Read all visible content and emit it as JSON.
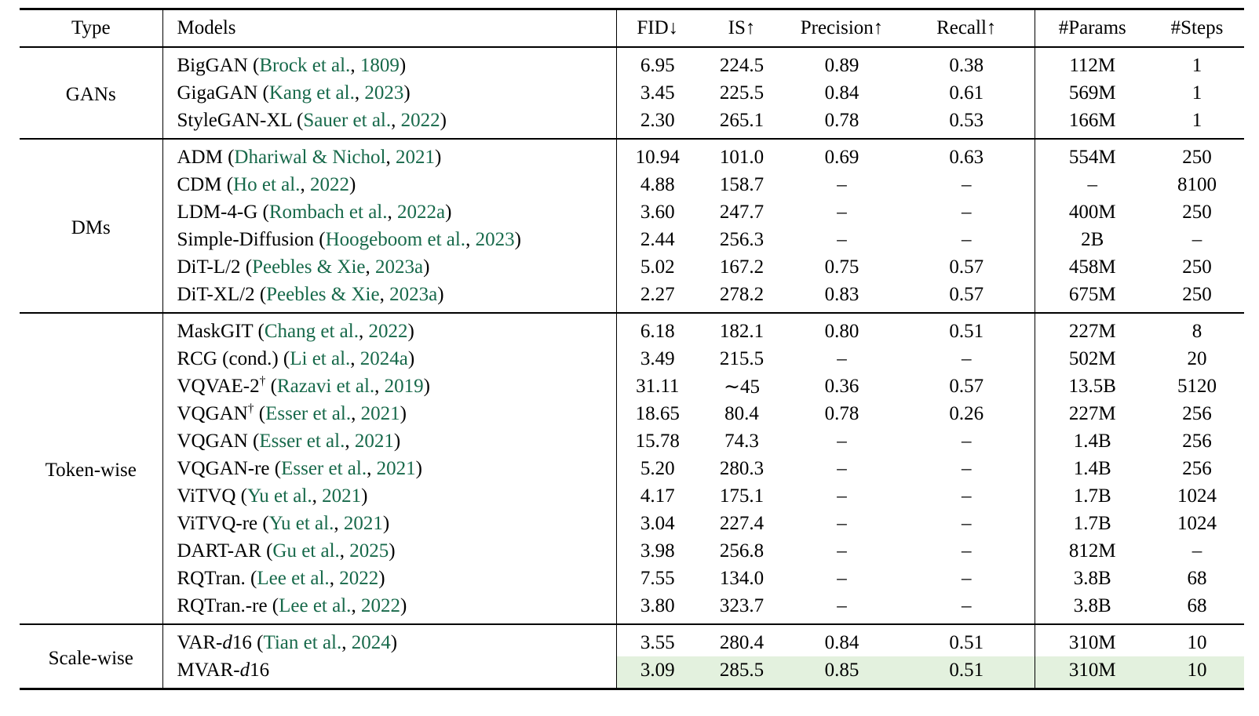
{
  "colors": {
    "citation_green": "#17694a",
    "highlight_green": "#e3f1de",
    "text": "#000000",
    "background": "#ffffff"
  },
  "table": {
    "columns": [
      "Type",
      "Models",
      "FID↓",
      "IS↑",
      "Precision↑",
      "Recall↑",
      "#Params",
      "#Steps"
    ],
    "value_keys": [
      "fid",
      "is",
      "precision",
      "recall",
      "params",
      "steps"
    ],
    "groups": [
      {
        "type": "GANs",
        "rows": [
          {
            "model": [
              {
                "t": "BigGAN"
              }
            ],
            "authors": "Brock et al.",
            "year": "1809",
            "values": [
              "6.95",
              "224.5",
              "0.89",
              "0.38",
              "112M",
              "1"
            ]
          },
          {
            "model": [
              {
                "t": "GigaGAN"
              }
            ],
            "authors": "Kang et al.",
            "year": "2023",
            "values": [
              "3.45",
              "225.5",
              "0.84",
              "0.61",
              "569M",
              "1"
            ]
          },
          {
            "model": [
              {
                "t": "StyleGAN-XL"
              }
            ],
            "authors": "Sauer et al.",
            "year": "2022",
            "values": [
              "2.30",
              "265.1",
              "0.78",
              "0.53",
              "166M",
              "1"
            ]
          }
        ]
      },
      {
        "type": "DMs",
        "rows": [
          {
            "model": [
              {
                "t": "ADM"
              }
            ],
            "authors": "Dhariwal & Nichol",
            "year": "2021",
            "values": [
              "10.94",
              "101.0",
              "0.69",
              "0.63",
              "554M",
              "250"
            ]
          },
          {
            "model": [
              {
                "t": "CDM"
              }
            ],
            "authors": "Ho et al.",
            "year": "2022",
            "values": [
              "4.88",
              "158.7",
              "–",
              "–",
              "–",
              "8100"
            ]
          },
          {
            "model": [
              {
                "t": "LDM-4-G"
              }
            ],
            "authors": "Rombach et al.",
            "year": "2022a",
            "values": [
              "3.60",
              "247.7",
              "–",
              "–",
              "400M",
              "250"
            ]
          },
          {
            "model": [
              {
                "t": "Simple-Diffusion"
              }
            ],
            "authors": "Hoogeboom et al.",
            "year": "2023",
            "values": [
              "2.44",
              "256.3",
              "–",
              "–",
              "2B",
              "–"
            ]
          },
          {
            "model": [
              {
                "t": "DiT-L/2"
              }
            ],
            "authors": "Peebles & Xie",
            "year": "2023a",
            "values": [
              "5.02",
              "167.2",
              "0.75",
              "0.57",
              "458M",
              "250"
            ]
          },
          {
            "model": [
              {
                "t": "DiT-XL/2"
              }
            ],
            "authors": "Peebles & Xie",
            "year": "2023a",
            "values": [
              "2.27",
              "278.2",
              "0.83",
              "0.57",
              "675M",
              "250"
            ]
          }
        ]
      },
      {
        "type": "Token-wise",
        "rows": [
          {
            "model": [
              {
                "t": "MaskGIT"
              }
            ],
            "authors": "Chang et al.",
            "year": "2022",
            "values": [
              "6.18",
              "182.1",
              "0.80",
              "0.51",
              "227M",
              "8"
            ]
          },
          {
            "model": [
              {
                "t": "RCG (cond.)"
              }
            ],
            "authors": "Li et al.",
            "year": "2024a",
            "values": [
              "3.49",
              "215.5",
              "–",
              "–",
              "502M",
              "20"
            ]
          },
          {
            "model": [
              {
                "t": "VQVAE-2"
              },
              {
                "t": "†",
                "sup": true
              }
            ],
            "authors": "Razavi et al.",
            "year": "2019",
            "values": [
              "31.11",
              "∼45",
              "0.36",
              "0.57",
              "13.5B",
              "5120"
            ]
          },
          {
            "model": [
              {
                "t": "VQGAN"
              },
              {
                "t": "†",
                "sup": true
              }
            ],
            "authors": "Esser et al.",
            "year": "2021",
            "values": [
              "18.65",
              "80.4",
              "0.78",
              "0.26",
              "227M",
              "256"
            ]
          },
          {
            "model": [
              {
                "t": "VQGAN"
              }
            ],
            "authors": "Esser et al.",
            "year": "2021",
            "values": [
              "15.78",
              "74.3",
              "–",
              "–",
              "1.4B",
              "256"
            ]
          },
          {
            "model": [
              {
                "t": "VQGAN-re"
              }
            ],
            "authors": "Esser et al.",
            "year": "2021",
            "values": [
              "5.20",
              "280.3",
              "–",
              "–",
              "1.4B",
              "256"
            ]
          },
          {
            "model": [
              {
                "t": "ViTVQ"
              }
            ],
            "authors": "Yu et al.",
            "year": "2021",
            "values": [
              "4.17",
              "175.1",
              "–",
              "–",
              "1.7B",
              "1024"
            ]
          },
          {
            "model": [
              {
                "t": "ViTVQ-re"
              }
            ],
            "authors": "Yu et al.",
            "year": "2021",
            "values": [
              "3.04",
              "227.4",
              "–",
              "–",
              "1.7B",
              "1024"
            ]
          },
          {
            "model": [
              {
                "t": "DART-AR"
              }
            ],
            "authors": "Gu et al.",
            "year": "2025",
            "values": [
              "3.98",
              "256.8",
              "–",
              "–",
              "812M",
              "–"
            ]
          },
          {
            "model": [
              {
                "t": "RQTran."
              }
            ],
            "authors": "Lee et al.",
            "year": "2022",
            "values": [
              "7.55",
              "134.0",
              "–",
              "–",
              "3.8B",
              "68"
            ]
          },
          {
            "model": [
              {
                "t": "RQTran.-re"
              }
            ],
            "authors": "Lee et al.",
            "year": "2022",
            "values": [
              "3.80",
              "323.7",
              "–",
              "–",
              "3.8B",
              "68"
            ]
          }
        ]
      },
      {
        "type": "Scale-wise",
        "rows": [
          {
            "model": [
              {
                "t": "VAR-"
              },
              {
                "t": "d",
                "i": true
              },
              {
                "t": "16"
              }
            ],
            "authors": "Tian et al.",
            "year": "2024",
            "values": [
              "3.55",
              "280.4",
              "0.84",
              "0.51",
              "310M",
              "10"
            ]
          },
          {
            "model": [
              {
                "t": "MVAR-"
              },
              {
                "t": "d",
                "i": true
              },
              {
                "t": "16"
              }
            ],
            "authors": null,
            "year": null,
            "highlight": true,
            "values": [
              "3.09",
              "285.5",
              "0.85",
              "0.51",
              "310M",
              "10"
            ]
          }
        ]
      }
    ]
  }
}
